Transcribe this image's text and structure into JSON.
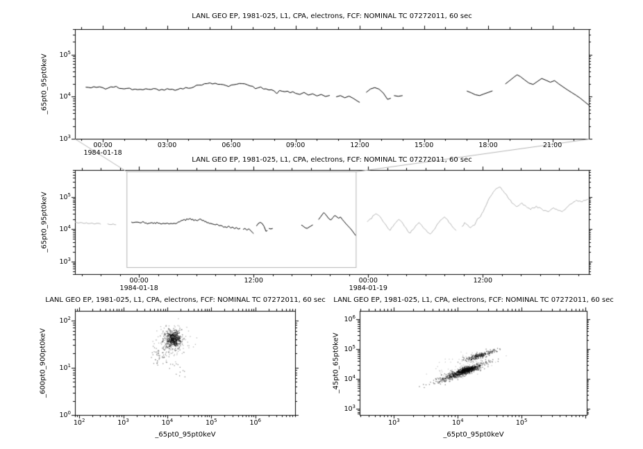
{
  "colors": {
    "foreground": "#000000",
    "background": "#ffffff",
    "context_gray": "#b4b4b4"
  },
  "seed": 1984,
  "chart_data": [
    {
      "type": "line",
      "title": "LANL GEO EP, 1981-025, L1, CPA, electrons, FCF: NOMINAL TC 07272011, 60 sec",
      "ylabel": "_65pt0_95pt0keV",
      "x_range_hours": [
        -1.3,
        22.7
      ],
      "y_range": [
        1000,
        400000
      ],
      "y_tick_exponents": [
        3,
        4,
        5
      ],
      "x_minor_hours": 1,
      "x_ticks": [
        {
          "hour": 0,
          "label": "00:00"
        },
        {
          "hour": 3,
          "label": "03:00"
        },
        {
          "hour": 6,
          "label": "06:00"
        },
        {
          "hour": 9,
          "label": "09:00"
        },
        {
          "hour": 12,
          "label": "12:00"
        },
        {
          "hour": 15,
          "label": "15:00"
        },
        {
          "hour": 18,
          "label": "18:00"
        },
        {
          "hour": 21,
          "label": "21:00"
        }
      ],
      "date_labels": [
        {
          "hour": 0,
          "label": "1984-01-18"
        }
      ],
      "series": [
        {
          "name": "day1-electron-flux",
          "color": "#000000",
          "segments_ref": "day1_segments"
        }
      ]
    },
    {
      "type": "line",
      "title": "LANL GEO EP, 1981-025, L1, CPA, electrons, FCF: NOMINAL TC 07272011, 60 sec",
      "ylabel": "_65pt0_95pt0keV",
      "x_range_hours": [
        -6.7,
        47.1
      ],
      "y_range": [
        400,
        700000
      ],
      "y_tick_exponents": [
        3,
        4,
        5
      ],
      "x_minor_hours": 2,
      "x_ticks": [
        {
          "hour": 0,
          "label": "00:00"
        },
        {
          "hour": 12,
          "label": "12:00"
        },
        {
          "hour": 24,
          "label": "00:00"
        },
        {
          "hour": 36,
          "label": "12:00"
        }
      ],
      "date_labels": [
        {
          "hour": 0,
          "label": "1984-01-18"
        },
        {
          "hour": 24,
          "label": "1984-01-19"
        }
      ],
      "series": [
        {
          "name": "context-before",
          "color": "#b4b4b4",
          "segments_ref": "day2_pre"
        },
        {
          "name": "day1-electron-flux",
          "color": "#000000",
          "segments_ref": "day1_segments"
        },
        {
          "name": "context-after",
          "color": "#b4b4b4",
          "segments_ref": "day2_post"
        }
      ],
      "zoom_box_hours": [
        -1.3,
        22.7
      ]
    },
    {
      "type": "scatter",
      "title": "LANL GEO EP, 1981-025, L1, CPA, electrons, FCF: NOMINAL TC 07272011, 60 sec",
      "xlabel": "_65pt0_95pt0keV",
      "ylabel": "_600pt0_900pt0keV",
      "x_range": [
        80,
        8000000
      ],
      "y_range": [
        1,
        160
      ],
      "x_tick_exponents": [
        2,
        3,
        4,
        5,
        6
      ],
      "y_tick_exponents": [
        0,
        1,
        2
      ],
      "cluster_space": "log10",
      "clusters": [
        {
          "n": 450,
          "cx": 4.13,
          "cy": 1.62,
          "sx": 0.09,
          "sy": 0.09,
          "rot_deg": 0,
          "alpha": 0.55
        },
        {
          "n": 180,
          "cx": 4.1,
          "cy": 1.55,
          "sx": 0.2,
          "sy": 0.18,
          "rot_deg": 0,
          "alpha": 0.3
        },
        {
          "n": 45,
          "cx": 3.83,
          "cy": 1.27,
          "sx": 0.1,
          "sy": 0.12,
          "rot_deg": 0,
          "alpha": 0.45
        },
        {
          "n": 14,
          "cx": 4.12,
          "cy": 0.98,
          "sx": 0.16,
          "sy": 0.1,
          "rot_deg": 0,
          "alpha": 0.45
        }
      ]
    },
    {
      "type": "scatter",
      "title": "LANL GEO EP, 1981-025, L1, CPA, electrons, FCF: NOMINAL TC 07272011, 60 sec",
      "xlabel": "_65pt0_95pt0keV",
      "ylabel": "_45pt0_65pt0keV",
      "x_range": [
        290,
        1050000
      ],
      "y_range": [
        630,
        1900000
      ],
      "x_tick_exponents": [
        3,
        4,
        5
      ],
      "y_tick_exponents": [
        3,
        4,
        5,
        6
      ],
      "cluster_space": "log10",
      "clusters": [
        {
          "n": 600,
          "cx": 4.07,
          "cy": 4.25,
          "sx": 0.24,
          "sy": 0.05,
          "rot_deg": 39,
          "alpha": 0.5
        },
        {
          "n": 300,
          "cx": 4.12,
          "cy": 4.3,
          "sx": 0.1,
          "sy": 0.04,
          "rot_deg": 39,
          "alpha": 0.6
        },
        {
          "n": 220,
          "cx": 4.33,
          "cy": 4.8,
          "sx": 0.14,
          "sy": 0.04,
          "rot_deg": 35,
          "alpha": 0.55
        },
        {
          "n": 90,
          "cx": 4.1,
          "cy": 4.45,
          "sx": 0.25,
          "sy": 0.15,
          "rot_deg": 35,
          "alpha": 0.22
        },
        {
          "n": 30,
          "cx": 3.8,
          "cy": 4.02,
          "sx": 0.08,
          "sy": 0.07,
          "rot_deg": 0,
          "alpha": 0.5
        }
      ]
    }
  ],
  "series": {
    "day1_segments": [
      [
        [
          -0.8,
          16800
        ],
        [
          -0.55,
          16200
        ],
        [
          -0.3,
          16600
        ],
        [
          0,
          16300
        ],
        [
          0.25,
          16000
        ],
        [
          0.5,
          16800
        ],
        [
          0.75,
          15800
        ],
        [
          1,
          15300
        ],
        [
          1.25,
          15900
        ],
        [
          1.5,
          15100
        ],
        [
          1.75,
          14900
        ],
        [
          2,
          15400
        ],
        [
          2.25,
          14800
        ],
        [
          2.5,
          15300
        ],
        [
          2.75,
          14900
        ],
        [
          3,
          15500
        ],
        [
          3.25,
          15000
        ],
        [
          3.5,
          14800
        ],
        [
          3.75,
          15200
        ],
        [
          4,
          15800
        ],
        [
          4.25,
          17000
        ],
        [
          4.5,
          18800
        ],
        [
          4.75,
          20300
        ],
        [
          5,
          21200
        ],
        [
          5.25,
          20800
        ],
        [
          5.5,
          19600
        ],
        [
          5.75,
          18400
        ],
        [
          6,
          18900
        ],
        [
          6.25,
          19700
        ],
        [
          6.5,
          20400
        ],
        [
          6.75,
          19100
        ],
        [
          7,
          17600
        ],
        [
          7.25,
          16200
        ],
        [
          7.5,
          15200
        ],
        [
          7.75,
          14400
        ],
        [
          8,
          13700
        ],
        [
          8.25,
          14000
        ],
        [
          8.5,
          13100
        ],
        [
          8.75,
          12400
        ],
        [
          9,
          12000
        ],
        [
          9.2,
          11300
        ],
        [
          9.4,
          12600
        ],
        [
          9.6,
          10900
        ],
        [
          9.8,
          11700
        ],
        [
          10,
          10400
        ],
        [
          10.2,
          11300
        ],
        [
          10.4,
          10100
        ],
        [
          10.6,
          10700
        ]
      ],
      [
        [
          10.9,
          9900
        ],
        [
          11.1,
          10600
        ],
        [
          11.3,
          9400
        ],
        [
          11.5,
          10300
        ],
        [
          11.7,
          9100
        ],
        [
          11.9,
          7800
        ],
        [
          12,
          7300
        ]
      ],
      [
        [
          12.3,
          12600
        ],
        [
          12.5,
          15200
        ],
        [
          12.7,
          16400
        ],
        [
          12.9,
          15100
        ],
        [
          13.1,
          12200
        ],
        [
          13.3,
          8600
        ],
        [
          13.45,
          9200
        ]
      ],
      [
        [
          13.6,
          10600
        ],
        [
          13.8,
          10200
        ],
        [
          14,
          10600
        ]
      ],
      [
        [
          17,
          13600
        ],
        [
          17.2,
          12400
        ],
        [
          17.4,
          11100
        ],
        [
          17.6,
          10600
        ],
        [
          17.8,
          11600
        ],
        [
          18,
          12600
        ],
        [
          18.2,
          13700
        ]
      ],
      [
        [
          18.8,
          20000
        ],
        [
          19,
          24000
        ],
        [
          19.2,
          29000
        ],
        [
          19.35,
          33000
        ],
        [
          19.5,
          30000
        ],
        [
          19.7,
          25000
        ],
        [
          19.9,
          21000
        ],
        [
          20.1,
          19500
        ],
        [
          20.3,
          23000
        ],
        [
          20.5,
          27000
        ],
        [
          20.7,
          24500
        ],
        [
          20.9,
          22000
        ],
        [
          21.1,
          24000
        ],
        [
          21.3,
          20000
        ],
        [
          21.5,
          17000
        ],
        [
          21.7,
          14500
        ],
        [
          21.9,
          12500
        ],
        [
          22.1,
          10800
        ],
        [
          22.3,
          9200
        ],
        [
          22.5,
          7600
        ],
        [
          22.7,
          6300
        ]
      ]
    ],
    "day2_pre": [
      [
        [
          -6.7,
          16500
        ],
        [
          -6.4,
          15600
        ],
        [
          -6.1,
          16200
        ],
        [
          -5.8,
          15300
        ],
        [
          -5.5,
          16000
        ],
        [
          -5.2,
          15000
        ],
        [
          -4.9,
          15600
        ],
        [
          -4.6,
          14600
        ],
        [
          -4.3,
          15300
        ],
        [
          -4,
          14300
        ]
      ],
      [
        [
          -3.3,
          14800
        ],
        [
          -3,
          14000
        ],
        [
          -2.7,
          14700
        ],
        [
          -2.4,
          13900
        ]
      ]
    ],
    "day2_post": [
      [
        [
          23.9,
          17000
        ],
        [
          24.2,
          21000
        ],
        [
          24.5,
          26500
        ],
        [
          24.8,
          30500
        ],
        [
          25.1,
          27000
        ],
        [
          25.4,
          21000
        ],
        [
          25.7,
          15500
        ],
        [
          26,
          11500
        ],
        [
          26.3,
          9200
        ],
        [
          26.6,
          12200
        ],
        [
          26.9,
          16200
        ],
        [
          27.2,
          20200
        ],
        [
          27.5,
          17200
        ],
        [
          27.8,
          12200
        ],
        [
          28.1,
          9200
        ],
        [
          28.4,
          7600
        ],
        [
          28.7,
          9700
        ],
        [
          29,
          13200
        ],
        [
          29.3,
          16200
        ],
        [
          29.6,
          13200
        ],
        [
          29.9,
          10200
        ],
        [
          30.2,
          8100
        ],
        [
          30.5,
          7100
        ],
        [
          30.8,
          9100
        ],
        [
          31.1,
          12100
        ],
        [
          31.4,
          16100
        ],
        [
          31.7,
          20100
        ],
        [
          32,
          24100
        ],
        [
          32.3,
          20100
        ],
        [
          32.6,
          15100
        ],
        [
          32.9,
          11100
        ],
        [
          33.2,
          9100
        ]
      ],
      [
        [
          33.8,
          12200
        ],
        [
          34.1,
          16200
        ],
        [
          34.4,
          13700
        ],
        [
          34.7,
          11200
        ],
        [
          35,
          13200
        ],
        [
          35.3,
          17200
        ],
        [
          35.6,
          22500
        ],
        [
          35.9,
          31000
        ],
        [
          36.2,
          46000
        ],
        [
          36.5,
          72000
        ],
        [
          36.8,
          105000
        ],
        [
          37.1,
          145000
        ],
        [
          37.4,
          185000
        ],
        [
          37.7,
          205000
        ],
        [
          38,
          172000
        ],
        [
          38.3,
          132000
        ],
        [
          38.6,
          101000
        ],
        [
          38.9,
          81000
        ],
        [
          39.2,
          62000
        ],
        [
          39.5,
          51000
        ],
        [
          39.8,
          56000
        ],
        [
          40.1,
          66000
        ],
        [
          40.4,
          56000
        ],
        [
          40.7,
          46000
        ],
        [
          41,
          41000
        ],
        [
          41.3,
          46000
        ],
        [
          41.6,
          53000
        ],
        [
          41.9,
          48000
        ],
        [
          42.2,
          42000
        ],
        [
          42.5,
          38500
        ],
        [
          42.8,
          35500
        ],
        [
          43.1,
          40500
        ],
        [
          43.4,
          46500
        ],
        [
          43.7,
          42500
        ],
        [
          44,
          38500
        ],
        [
          44.3,
          35500
        ],
        [
          44.6,
          40500
        ],
        [
          44.9,
          50500
        ],
        [
          45.2,
          61000
        ],
        [
          45.5,
          71000
        ],
        [
          45.8,
          81000
        ],
        [
          46.1,
          76000
        ],
        [
          46.4,
          71000
        ],
        [
          46.7,
          79000
        ],
        [
          47,
          86000
        ]
      ]
    ]
  }
}
